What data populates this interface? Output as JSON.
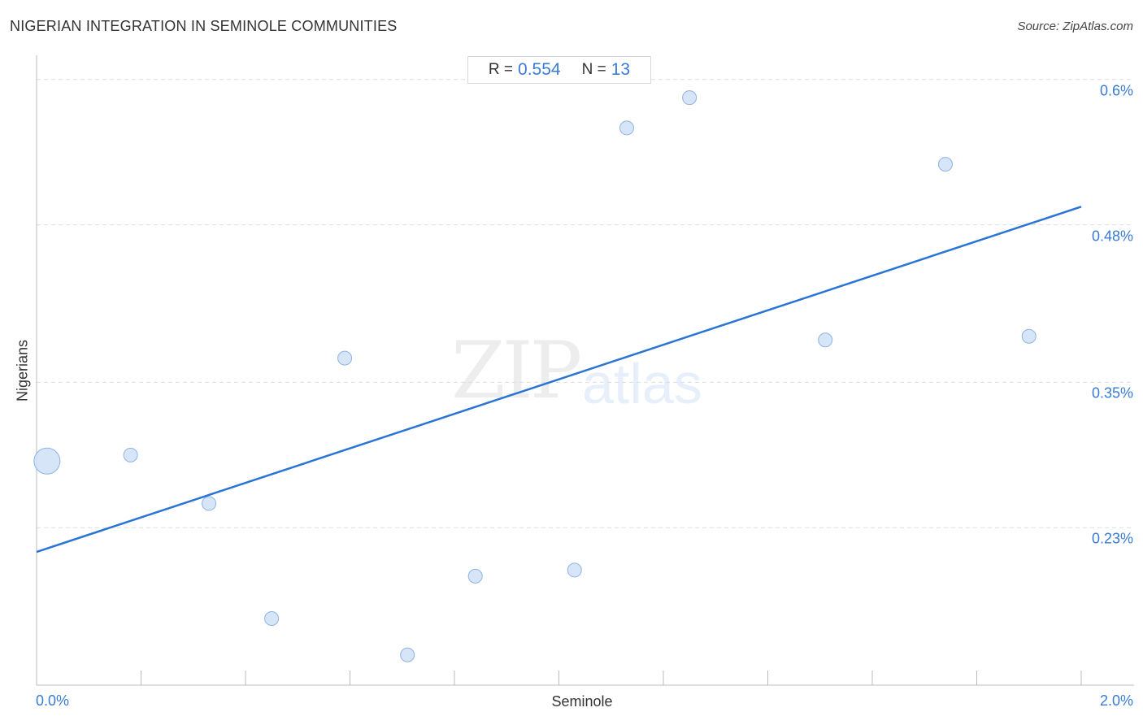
{
  "header": {
    "title": "NIGERIAN INTEGRATION IN SEMINOLE COMMUNITIES",
    "source": "Source: ZipAtlas.com"
  },
  "stats": {
    "r_label": "R =",
    "r_value": "0.554",
    "n_label": "N =",
    "n_value": "13"
  },
  "watermark": {
    "zip": "ZIP",
    "atlas": "atlas"
  },
  "colors": {
    "accent": "#3a7bd5",
    "point_fill": "#cfe0f7",
    "point_stroke": "#8fb3e3",
    "trend_line": "#2a74d4",
    "grid": "#dddddd"
  },
  "chart_data": {
    "type": "scatter",
    "xlabel": "Seminole",
    "ylabel": "Nigerians",
    "xlim": [
      0.0,
      2.0
    ],
    "ylim": [
      0.1,
      0.62
    ],
    "x_tick_labels": [
      "0.0%",
      "2.0%"
    ],
    "y_ticks": [
      0.23,
      0.35,
      0.48,
      0.6
    ],
    "y_tick_labels": [
      "0.23%",
      "0.35%",
      "0.48%",
      "0.6%"
    ],
    "grid": "horizontal dashed",
    "points": [
      {
        "x": 0.02,
        "y": 0.285,
        "size": "large"
      },
      {
        "x": 0.18,
        "y": 0.29,
        "size": "normal"
      },
      {
        "x": 0.33,
        "y": 0.25,
        "size": "normal"
      },
      {
        "x": 0.45,
        "y": 0.155,
        "size": "normal"
      },
      {
        "x": 0.59,
        "y": 0.37,
        "size": "normal"
      },
      {
        "x": 0.71,
        "y": 0.125,
        "size": "normal"
      },
      {
        "x": 0.84,
        "y": 0.19,
        "size": "normal"
      },
      {
        "x": 1.03,
        "y": 0.195,
        "size": "normal"
      },
      {
        "x": 1.13,
        "y": 0.56,
        "size": "normal"
      },
      {
        "x": 1.25,
        "y": 0.585,
        "size": "normal"
      },
      {
        "x": 1.51,
        "y": 0.385,
        "size": "normal"
      },
      {
        "x": 1.74,
        "y": 0.53,
        "size": "normal"
      },
      {
        "x": 1.9,
        "y": 0.388,
        "size": "normal"
      }
    ],
    "trend_line": {
      "x": [
        0.0,
        2.0
      ],
      "y": [
        0.21,
        0.495
      ]
    }
  }
}
